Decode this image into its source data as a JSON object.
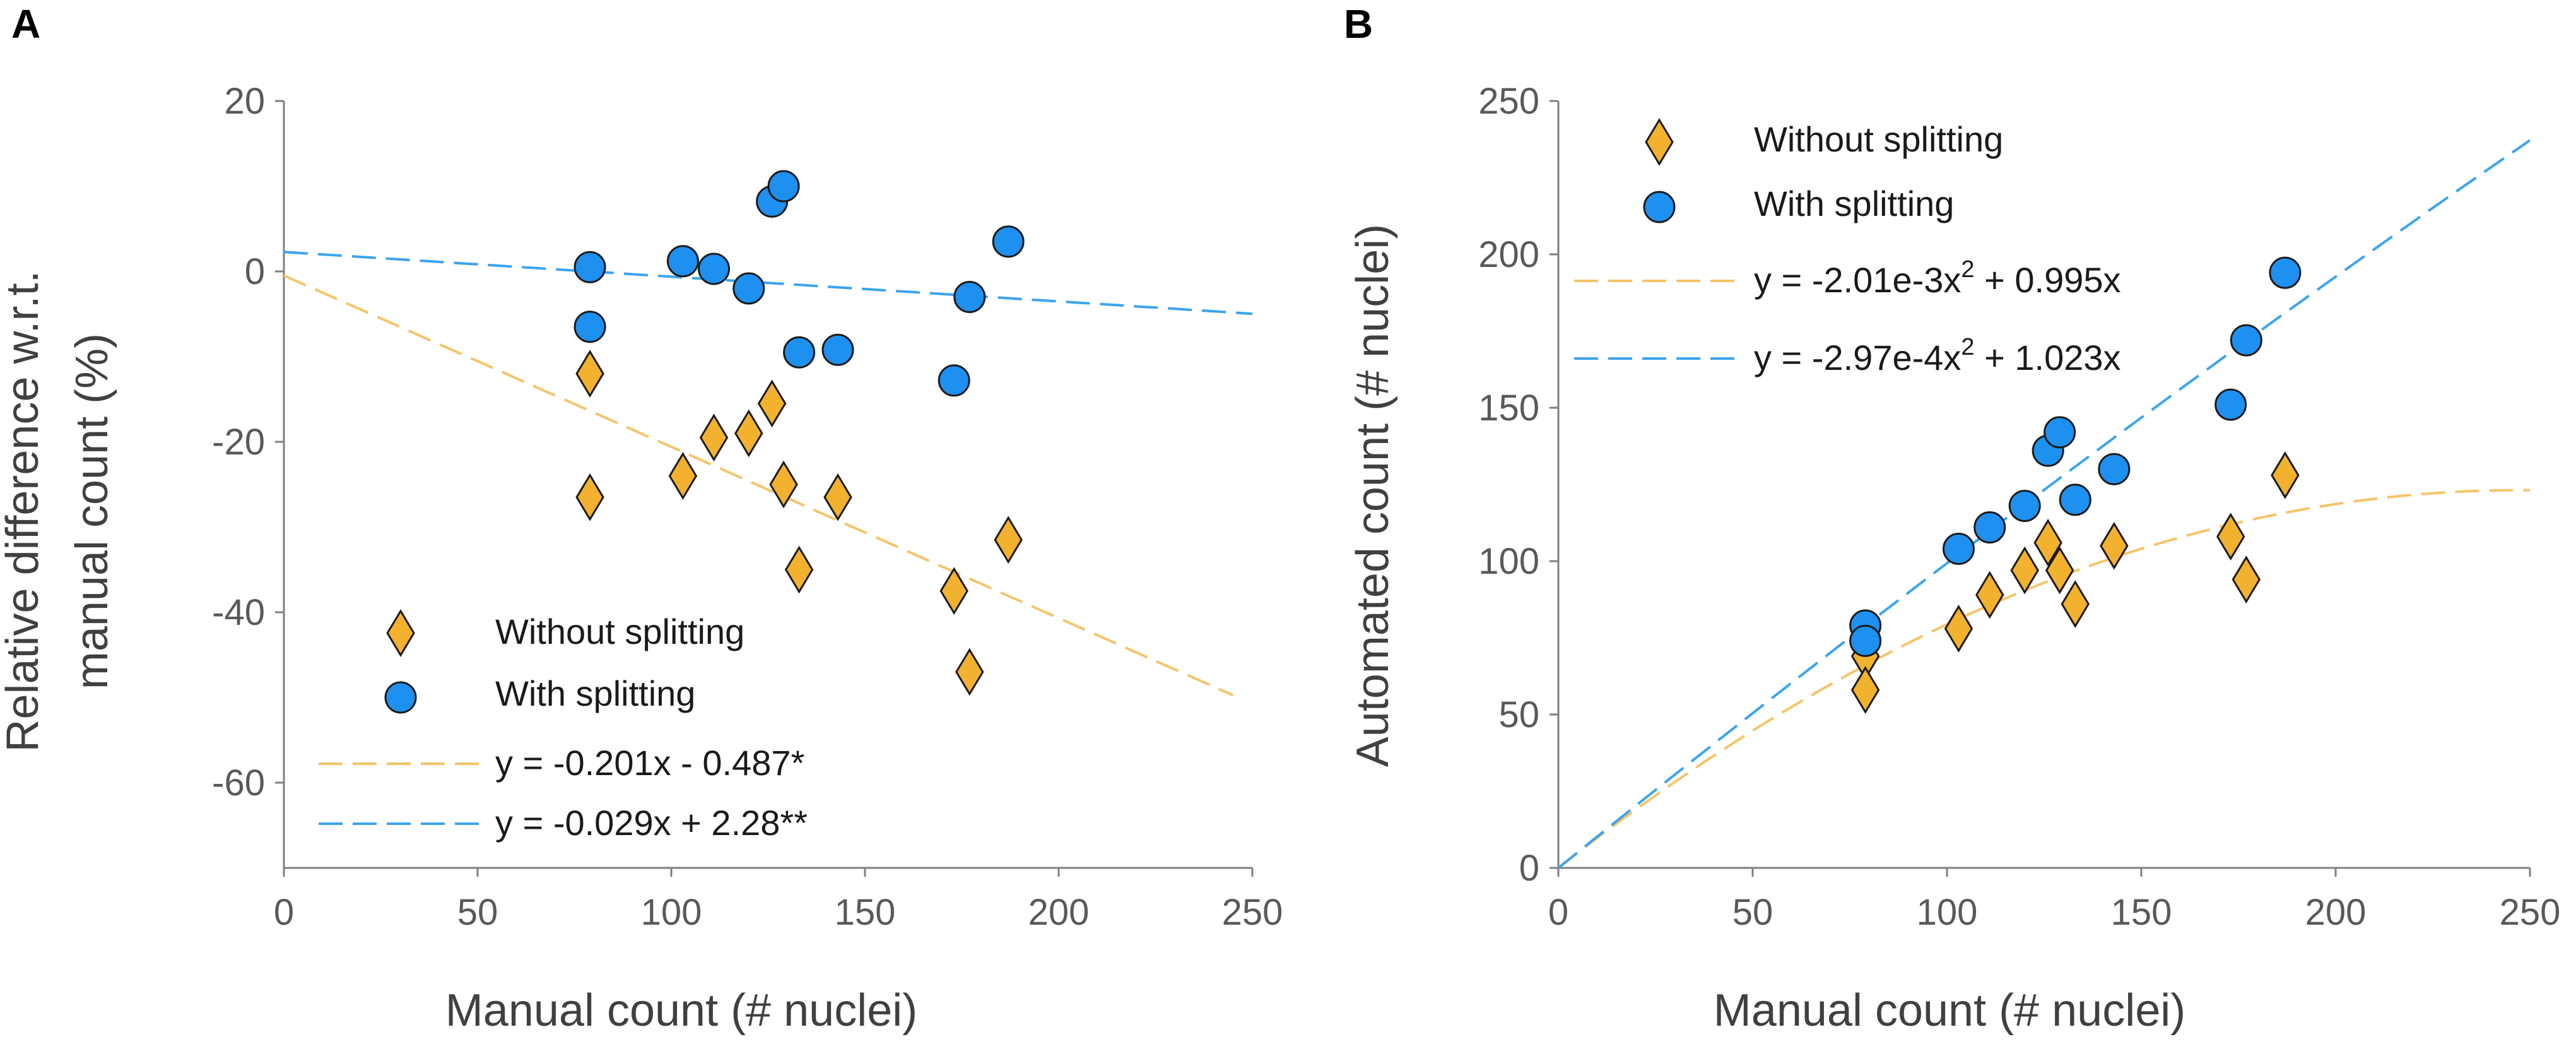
{
  "colors": {
    "without": "#F2B12E",
    "with": "#1E90F0",
    "without_line": "#F5C46A",
    "with_line": "#3BA4EE",
    "marker_edge": "#1a1a1a",
    "axis": "#7f7f7f"
  },
  "chart_data": [
    {
      "type": "scatter",
      "panel_label": "A",
      "xlabel": "Manual count (# nuclei)",
      "ylabel_lines": [
        "Relative difference w.r.t.",
        "manual count  (%)"
      ],
      "xlim": [
        0,
        250
      ],
      "ylim": [
        -70,
        20
      ],
      "xticks": [
        0,
        50,
        100,
        150,
        200,
        250
      ],
      "yticks": [
        20,
        0,
        -20,
        -40,
        -60
      ],
      "series": [
        {
          "name": "Without splitting",
          "marker": "diamond",
          "points": [
            [
              79,
              -12
            ],
            [
              79,
              -26.5
            ],
            [
              103,
              -24
            ],
            [
              111,
              -19.5
            ],
            [
              120,
              -19
            ],
            [
              126,
              -15.5
            ],
            [
              129,
              -25
            ],
            [
              133,
              -35
            ],
            [
              143,
              -26.5
            ],
            [
              173,
              -37.5
            ],
            [
              177,
              -47
            ],
            [
              187,
              -31.5
            ]
          ]
        },
        {
          "name": "With splitting",
          "marker": "circle",
          "points": [
            [
              79,
              0.5
            ],
            [
              79,
              -6.5
            ],
            [
              103,
              1.2
            ],
            [
              111,
              0.3
            ],
            [
              120,
              -2
            ],
            [
              126,
              8.2
            ],
            [
              129,
              10
            ],
            [
              133,
              -9.5
            ],
            [
              143,
              -9.2
            ],
            [
              173,
              -12.8
            ],
            [
              177,
              -3
            ],
            [
              187,
              3.5
            ]
          ]
        }
      ],
      "fits": [
        {
          "name": "y = -0.201x - 0.487*",
          "series": "Without splitting",
          "coef": [
            -0.201,
            -0.487
          ],
          "x_range": [
            0,
            245
          ]
        },
        {
          "name": "y = -0.029x + 2.28**",
          "series": "With splitting",
          "coef": [
            -0.029,
            2.28
          ],
          "x_range": [
            0,
            250
          ]
        }
      ],
      "legend_position": "bottom-left"
    },
    {
      "type": "scatter",
      "panel_label": "B",
      "xlabel": "Manual count (# nuclei)",
      "ylabel_lines": [
        "Automated count (# nuclei)"
      ],
      "xlim": [
        0,
        250
      ],
      "ylim": [
        0,
        250
      ],
      "xticks": [
        0,
        50,
        100,
        150,
        200,
        250
      ],
      "yticks": [
        250,
        200,
        150,
        100,
        50,
        0
      ],
      "series": [
        {
          "name": "Without splitting",
          "marker": "diamond",
          "points": [
            [
              79,
              69
            ],
            [
              79,
              58
            ],
            [
              103,
              78
            ],
            [
              111,
              89
            ],
            [
              120,
              97
            ],
            [
              126,
              106
            ],
            [
              129,
              97
            ],
            [
              133,
              86
            ],
            [
              143,
              105
            ],
            [
              173,
              108
            ],
            [
              177,
              94
            ],
            [
              187,
              128
            ]
          ]
        },
        {
          "name": "With splitting",
          "marker": "circle",
          "points": [
            [
              79,
              79
            ],
            [
              79,
              74
            ],
            [
              103,
              104
            ],
            [
              111,
              111
            ],
            [
              120,
              118
            ],
            [
              126,
              136
            ],
            [
              129,
              142
            ],
            [
              133,
              120
            ],
            [
              143,
              130
            ],
            [
              173,
              151
            ],
            [
              177,
              172
            ],
            [
              187,
              194
            ]
          ]
        }
      ],
      "fits": [
        {
          "name_main": "y = -2.01e-3x",
          "name_sup": "2",
          "name_tail": " + 0.995x",
          "series": "Without splitting",
          "coef": [
            -0.00201,
            0.995
          ],
          "x_range": [
            0,
            250
          ]
        },
        {
          "name_main": "y = -2.97e-4x",
          "name_sup": "2",
          "name_tail": " + 1.023x",
          "series": "With splitting",
          "coef": [
            -0.000297,
            1.023
          ],
          "x_range": [
            0,
            250
          ]
        }
      ],
      "legend_position": "top-left"
    }
  ]
}
